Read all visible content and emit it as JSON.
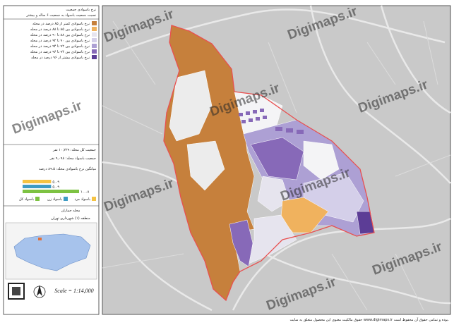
{
  "legend": {
    "title": "نرخ باسوادی جمعیت",
    "subtitle": "نسبت جمعیت باسواد به جمعیت ۶ ساله و بیشتر",
    "items": [
      {
        "label": "نرخ باسوادی کمتر از ۸۵ درصد در محله",
        "color": "#c6803c"
      },
      {
        "label": "نرخ باسوادی بین ۸۵ تا ۸۸ درصد در محله",
        "color": "#f0b25e"
      },
      {
        "label": "نرخ باسوادی بین ۸۸ تا ۹۰ درصد در محله",
        "color": "#e6e4ee"
      },
      {
        "label": "نرخ باسوادی بین ۹۰ تا ۹۲ درصد در محله",
        "color": "#d4cfe9"
      },
      {
        "label": "نرخ باسوادی بین ۹۲ تا ۹۴ درصد در محله",
        "color": "#ada0d4"
      },
      {
        "label": "نرخ باسوادی بین ۹۴ تا ۹۶ درصد در محله",
        "color": "#8769b8"
      },
      {
        "label": "نرخ باسوادی بیشتر از ۹۶ درصد در محله",
        "color": "#5c3d96"
      }
    ]
  },
  "stats": [
    "جمعیت کل محله: ۱۰,۲۲۹ نفر",
    "جمعیت باسواد محله: ۹,۰۹۸ نفر",
    "میانگین نرخ باسوادی محله: ۸۹.۵ درصد"
  ],
  "bars": {
    "items": [
      {
        "value": 5.09,
        "label": "۵.۰۹",
        "color": "#f5c343"
      },
      {
        "value": 5.09,
        "label": "۵.۰۹",
        "color": "#3d9bc4"
      },
      {
        "value": 10.08,
        "label": "۱۰.۰۸",
        "color": "#7dc242"
      }
    ],
    "keys": [
      {
        "label": "باسواد مرد",
        "color": "#f5c343"
      },
      {
        "label": "باسواد زن",
        "color": "#3d9bc4"
      },
      {
        "label": "باسواد کل",
        "color": "#7dc242"
      }
    ]
  },
  "location": {
    "title": "محله جماران",
    "subtitle": "منطقه (۱) شهرداری تهران"
  },
  "scale": "Scale = 1:14,000",
  "watermark": "Digimaps.ir",
  "footer": "حقوق مالکیت معنوی این محصول متعلق به سایت www.digimaps.ir بوده و تمامی حقوق آن محفوظ است."
}
